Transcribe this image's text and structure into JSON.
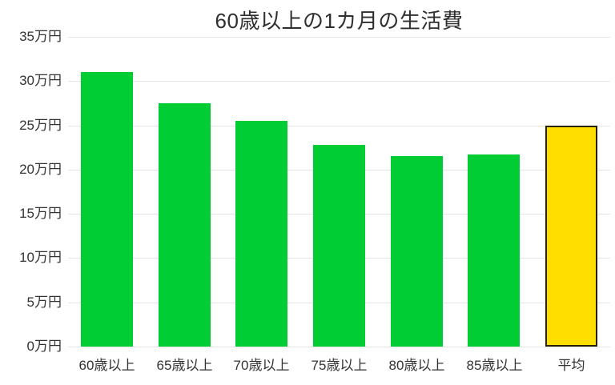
{
  "chart_data": {
    "type": "bar",
    "title": "60歳以上の1カ月の生活費",
    "categories": [
      "60歳以上",
      "65歳以上",
      "70歳以上",
      "75歳以上",
      "80歳以上",
      "85歳以上",
      "平均"
    ],
    "values": [
      31.0,
      27.5,
      25.5,
      22.8,
      21.5,
      21.7,
      25.0
    ],
    "unit": "万円",
    "ylim": [
      0,
      35
    ],
    "ytick_step": 5,
    "ytick_labels": [
      "0万円",
      "5万円",
      "10万円",
      "15万円",
      "20万円",
      "25万円",
      "30万円",
      "35万円"
    ],
    "grid": true,
    "legend_position": "none",
    "xlabel": "",
    "ylabel": ""
  },
  "colors": {
    "bar_fill": "#00cc33",
    "average_bar_fill": "#ffde00",
    "average_bar_border": "#262200",
    "gridline": "#e4e4e4",
    "text": "#333333",
    "background": "#ffffff"
  }
}
